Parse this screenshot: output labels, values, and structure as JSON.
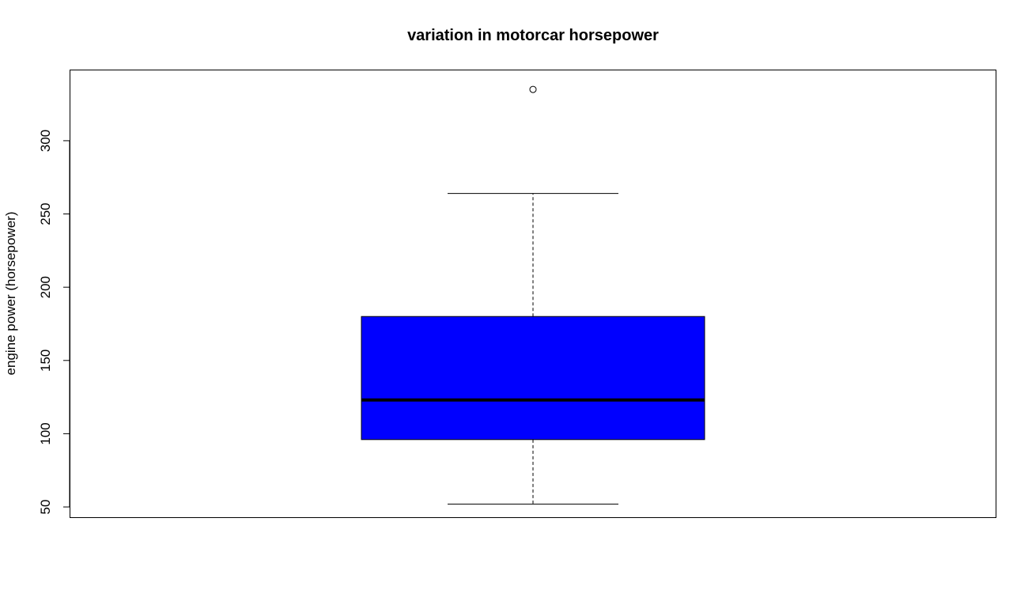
{
  "chart_data": {
    "type": "box",
    "title": "variation in motorcar horsepower",
    "xlabel": "",
    "ylabel": "engine power (horsepower)",
    "ylim": [
      43,
      348
    ],
    "yticks": [
      50,
      100,
      150,
      200,
      250,
      300
    ],
    "grid": false,
    "box": {
      "min": 52,
      "q1": 96,
      "median": 123,
      "q3": 180,
      "max": 264,
      "outliers": [
        335
      ],
      "fill_color": "#0000ff"
    }
  }
}
